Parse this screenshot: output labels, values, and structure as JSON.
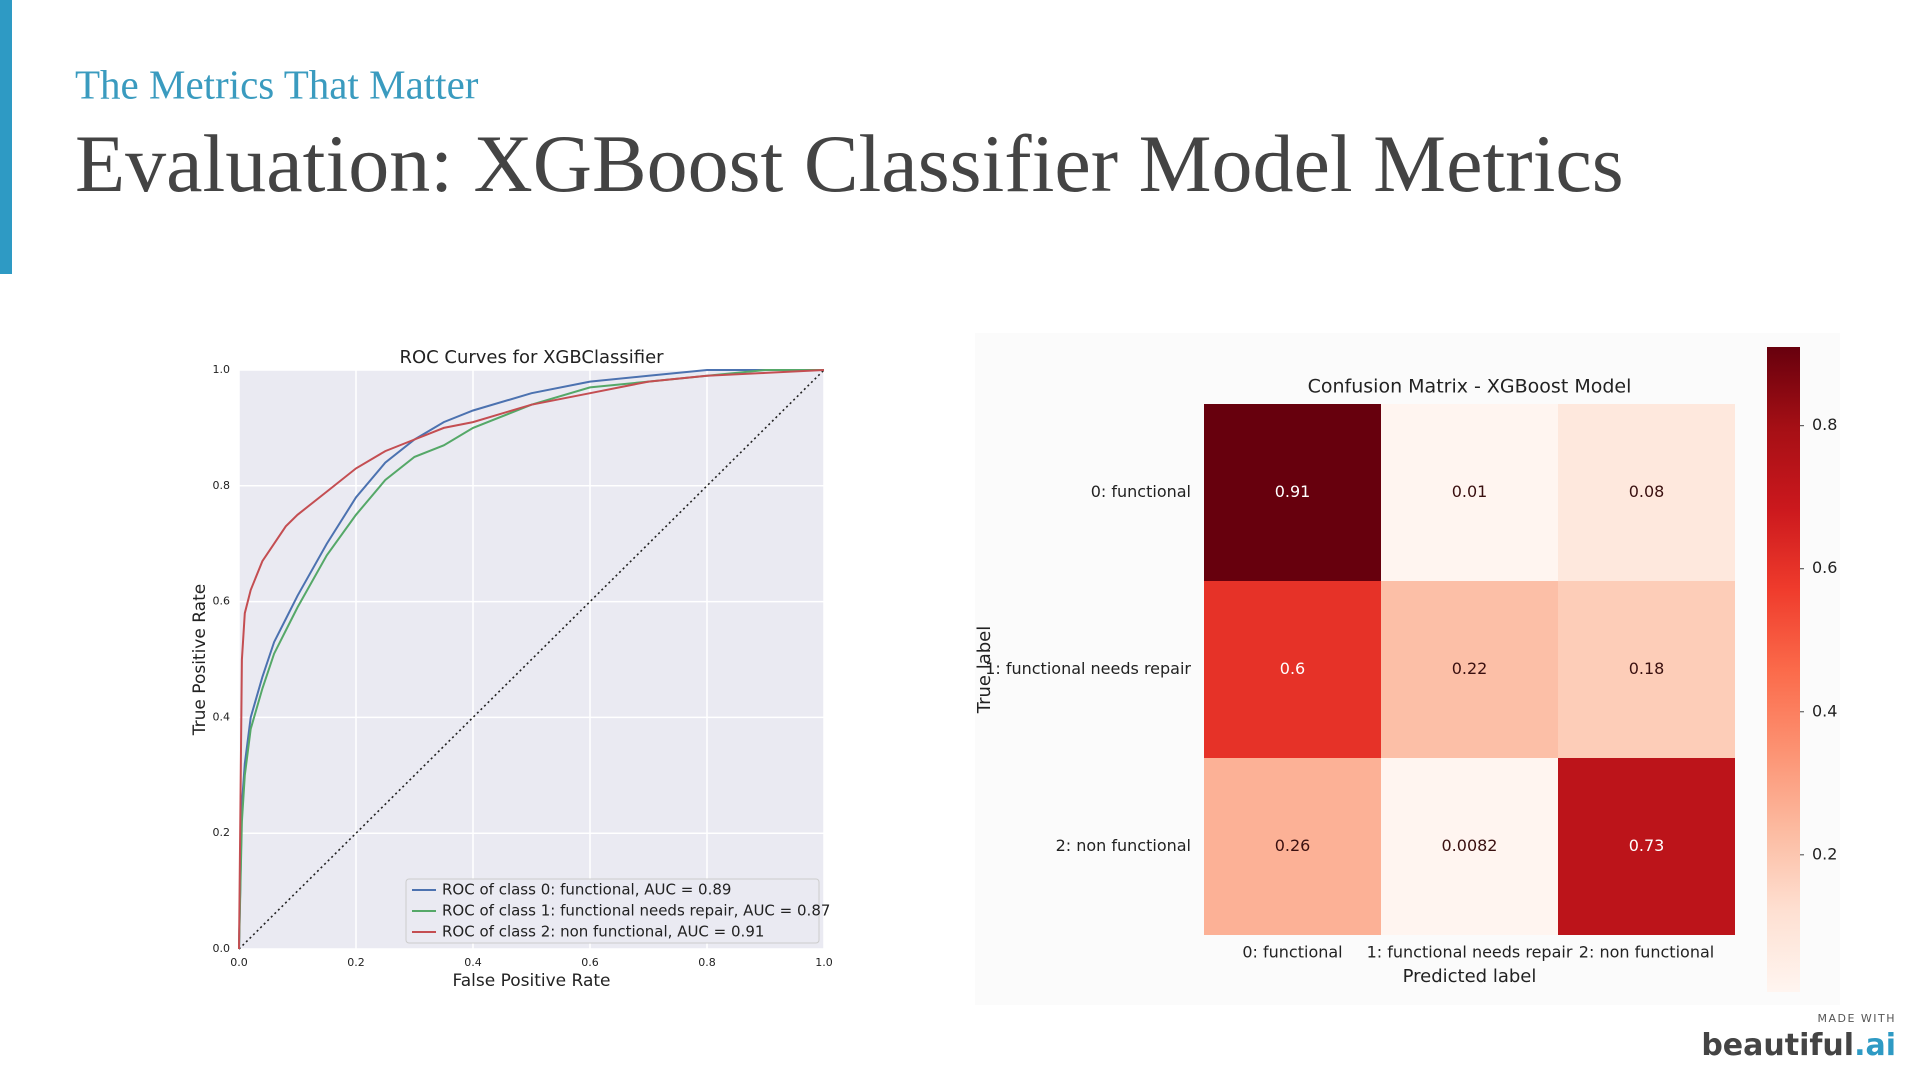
{
  "header": {
    "subtitle": "The Metrics That Matter",
    "title": "Evaluation: XGBoost Classifier Model Metrics"
  },
  "footer": {
    "made_with": "MADE WITH",
    "brand": "beautiful",
    "brand_suffix": ".ai"
  },
  "chart_data": [
    {
      "type": "line",
      "title": "ROC Curves for XGBClassifier",
      "xlabel": "False Positive Rate",
      "ylabel": "True Positive Rate",
      "x": [
        0,
        0.005,
        0.01,
        0.02,
        0.04,
        0.06,
        0.08,
        0.1,
        0.15,
        0.2,
        0.25,
        0.3,
        0.35,
        0.4,
        0.5,
        0.6,
        0.7,
        0.8,
        0.9,
        1.0
      ],
      "series": [
        {
          "name": "ROC of class 0: functional, AUC = 0.89",
          "color": "#4c72b0",
          "values": [
            0,
            0.25,
            0.32,
            0.4,
            0.47,
            0.53,
            0.57,
            0.61,
            0.7,
            0.78,
            0.84,
            0.88,
            0.91,
            0.93,
            0.96,
            0.98,
            0.99,
            1.0,
            1.0,
            1.0
          ]
        },
        {
          "name": "ROC of class 1: functional needs repair, AUC = 0.87",
          "color": "#55a868",
          "values": [
            0,
            0.22,
            0.3,
            0.38,
            0.45,
            0.51,
            0.55,
            0.59,
            0.68,
            0.75,
            0.81,
            0.85,
            0.87,
            0.9,
            0.94,
            0.97,
            0.98,
            0.99,
            1.0,
            1.0
          ]
        },
        {
          "name": "ROC of class 2: non functional, AUC = 0.91",
          "color": "#c44e52",
          "values": [
            0,
            0.5,
            0.58,
            0.62,
            0.67,
            0.7,
            0.73,
            0.75,
            0.79,
            0.83,
            0.86,
            0.88,
            0.9,
            0.91,
            0.94,
            0.96,
            0.98,
            0.99,
            0.995,
            1.0
          ]
        }
      ],
      "xlim": [
        0,
        1
      ],
      "ylim": [
        0,
        1
      ],
      "xticks": [
        {
          "value": 0,
          "label": "0.0"
        },
        0.2,
        0.4,
        0.6,
        0.8,
        {
          "value": 1,
          "label": "1.0"
        }
      ],
      "yticks": [
        {
          "value": 0,
          "label": "0.0"
        },
        0.2,
        0.4,
        0.6,
        0.8,
        {
          "value": 1,
          "label": "1.0"
        }
      ],
      "grid": true,
      "legend": "lower-right"
    },
    {
      "type": "heatmap",
      "title": "Confusion Matrix - XGBoost Model",
      "xlabel": "Predicted label",
      "ylabel": "True label",
      "x_categories": [
        "0: functional",
        "1: functional needs repair",
        "2: non functional"
      ],
      "y_categories": [
        "0: functional",
        "1: functional needs repair",
        "2: non functional"
      ],
      "values": [
        [
          0.91,
          0.01,
          0.08
        ],
        [
          0.6,
          0.22,
          0.18
        ],
        [
          0.26,
          0.0082,
          0.73
        ]
      ],
      "colormap": "Reds",
      "cticks": [
        0.2,
        0.4,
        0.6,
        0.8
      ]
    }
  ]
}
